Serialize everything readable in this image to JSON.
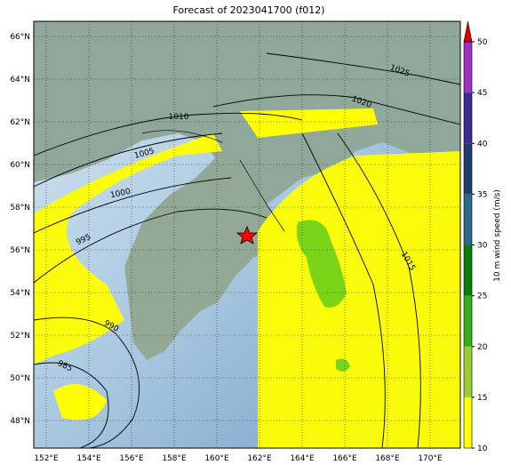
{
  "title": "Forecast of 2023041700 (f012)",
  "lat_labels": [
    "66°N",
    "64°N",
    "62°N",
    "60°N",
    "58°N",
    "56°N",
    "54°N",
    "52°N",
    "50°N",
    "48°N"
  ],
  "lon_labels": [
    "152°E",
    "154°E",
    "156°E",
    "158°E",
    "160°E",
    "162°E",
    "164°E",
    "166°E",
    "168°E",
    "170°E"
  ],
  "colorbar": {
    "label": "10 m wind speed (m/s)",
    "ticks": [
      10,
      15,
      20,
      25,
      30,
      35,
      40,
      45,
      50
    ],
    "lim": [
      10,
      50
    ],
    "colors": [
      "#ffff00",
      "#9acd32",
      "#32b01e",
      "#0a7d0a",
      "#2a6b8a",
      "#1e3f6e",
      "#3d2a8c",
      "#9b32c0"
    ],
    "extend_color": "#e00000"
  },
  "contour_labels": [
    "1025",
    "1020",
    "1010",
    "1005",
    "1000",
    "995",
    "990",
    "985",
    "1015"
  ]
}
